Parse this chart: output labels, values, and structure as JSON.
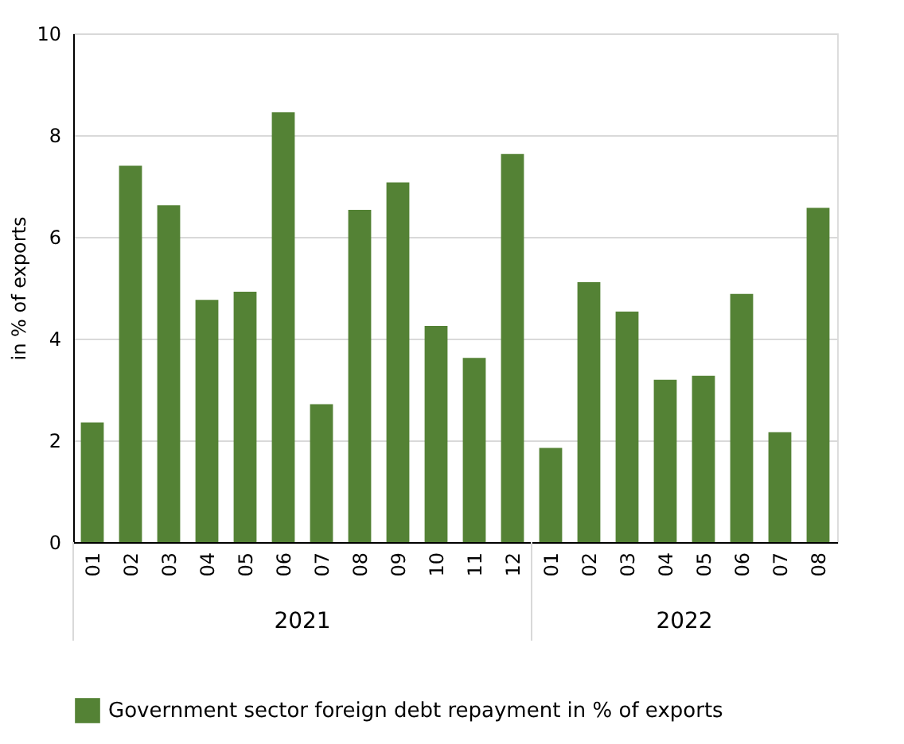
{
  "chart_data": {
    "type": "bar",
    "categories": [
      "01",
      "02",
      "03",
      "04",
      "05",
      "06",
      "07",
      "08",
      "09",
      "10",
      "11",
      "12",
      "01",
      "02",
      "03",
      "04",
      "05",
      "06",
      "07",
      "08"
    ],
    "series": [
      {
        "name": "Government sector foreign debt repayment in % of exports",
        "color": "#548235",
        "values": [
          2.35,
          7.4,
          6.62,
          4.76,
          4.92,
          8.45,
          2.71,
          6.53,
          7.07,
          4.25,
          3.62,
          7.63,
          1.85,
          5.11,
          4.53,
          3.19,
          3.27,
          4.88,
          2.16,
          6.57
        ]
      }
    ],
    "annotations": [
      "2021",
      "2022"
    ],
    "ylabel": "in % of exports",
    "ylim": [
      0,
      10
    ],
    "yticks": [
      0,
      2,
      4,
      6,
      8,
      10
    ],
    "grid": "y",
    "legend": "bottom"
  }
}
